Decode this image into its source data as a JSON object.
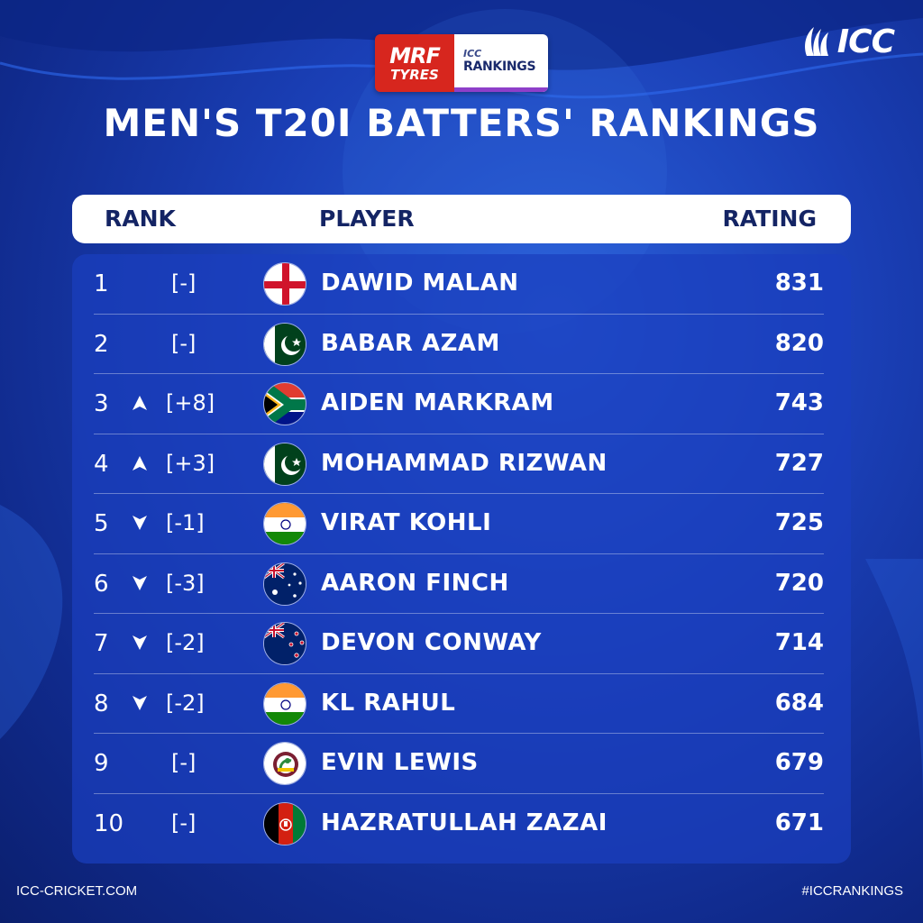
{
  "sponsor": {
    "brand_line1": "MRF",
    "brand_line2": "TYRES",
    "rankings_line1": "ICC",
    "rankings_line2": "RANKINGS"
  },
  "logo": {
    "text": "ICC",
    "icon": "icc-ball-logo-icon"
  },
  "title": "MEN'S T20I BATTERS' RANKINGS",
  "columns": {
    "rank": "RANK",
    "player": "PLAYER",
    "rating": "RATING"
  },
  "rows": [
    {
      "rank": "1",
      "movement": "none",
      "change": "[-]",
      "flag": "england",
      "player": "DAWID MALAN",
      "rating": "831"
    },
    {
      "rank": "2",
      "movement": "none",
      "change": "[-]",
      "flag": "pakistan",
      "player": "BABAR AZAM",
      "rating": "820"
    },
    {
      "rank": "3",
      "movement": "up",
      "change": "[+8]",
      "flag": "south-africa",
      "player": "AIDEN MARKRAM",
      "rating": "743"
    },
    {
      "rank": "4",
      "movement": "up",
      "change": "[+3]",
      "flag": "pakistan",
      "player": "MOHAMMAD RIZWAN",
      "rating": "727"
    },
    {
      "rank": "5",
      "movement": "down",
      "change": "[-1]",
      "flag": "india",
      "player": "VIRAT KOHLI",
      "rating": "725"
    },
    {
      "rank": "6",
      "movement": "down",
      "change": "[-3]",
      "flag": "australia",
      "player": "AARON FINCH",
      "rating": "720"
    },
    {
      "rank": "7",
      "movement": "down",
      "change": "[-2]",
      "flag": "new-zealand",
      "player": "DEVON CONWAY",
      "rating": "714"
    },
    {
      "rank": "8",
      "movement": "down",
      "change": "[-2]",
      "flag": "india",
      "player": "KL RAHUL",
      "rating": "684"
    },
    {
      "rank": "9",
      "movement": "none",
      "change": "[-]",
      "flag": "west-indies",
      "player": "EVIN LEWIS",
      "rating": "679"
    },
    {
      "rank": "10",
      "movement": "none",
      "change": "[-]",
      "flag": "afghanistan",
      "player": "HAZRATULLAH ZAZAI",
      "rating": "671"
    }
  ],
  "footer": {
    "left": "ICC-CRICKET.COM",
    "right": "#ICCRANKINGS"
  },
  "colors": {
    "background": "#1a3fb6",
    "panel": "#1a3ebe",
    "header_text": "#142464"
  }
}
